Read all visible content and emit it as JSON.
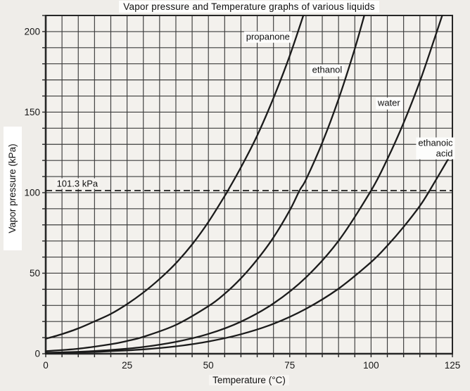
{
  "chart_data": {
    "type": "line",
    "title": "Vapor pressure and Temperature graphs of various liquids",
    "xlabel": "Temperature (°C)",
    "ylabel": "Vapor pressure (kPa)",
    "xlim": [
      0,
      125
    ],
    "ylim": [
      0,
      210
    ],
    "x_ticks": [
      0,
      25,
      50,
      75,
      100,
      125
    ],
    "y_ticks": [
      0,
      50,
      100,
      150,
      200
    ],
    "grid": {
      "on": true,
      "x_step_c": 5,
      "y_step_kpa": 10
    },
    "legend_position": "inline-labels",
    "reference_line": {
      "pressure_kpa": 101.3,
      "label": "101.3 kPa",
      "style": "dashed",
      "label_anchor": {
        "t": 9.7,
        "p": 105.7
      }
    },
    "series": [
      {
        "name": "propanone",
        "label": "propanone",
        "label_anchor": {
          "t": 68.3,
          "p": 196.5,
          "align": "center"
        },
        "points": [
          [
            0,
            9.3
          ],
          [
            5,
            12.2
          ],
          [
            10,
            15.7
          ],
          [
            15,
            20.1
          ],
          [
            20,
            24.7
          ],
          [
            25,
            30.8
          ],
          [
            30,
            38.0
          ],
          [
            35,
            46.4
          ],
          [
            40,
            56.2
          ],
          [
            45,
            67.9
          ],
          [
            50,
            81.8
          ],
          [
            55,
            97.9
          ],
          [
            56,
            101.3
          ],
          [
            60,
            115.7
          ],
          [
            65,
            135.5
          ],
          [
            70,
            158.8
          ],
          [
            75,
            185.0
          ],
          [
            80,
            215.0
          ]
        ]
      },
      {
        "name": "ethanol",
        "label": "ethanol",
        "label_anchor": {
          "t": 86.5,
          "p": 175.9,
          "align": "center"
        },
        "points": [
          [
            0,
            1.6
          ],
          [
            10,
            3.1
          ],
          [
            20,
            5.9
          ],
          [
            25,
            7.9
          ],
          [
            30,
            10.5
          ],
          [
            40,
            17.9
          ],
          [
            50,
            29.5
          ],
          [
            55,
            37.2
          ],
          [
            60,
            46.8
          ],
          [
            65,
            58.5
          ],
          [
            70,
            72.2
          ],
          [
            75,
            89.0
          ],
          [
            78,
            101.3
          ],
          [
            80,
            108.2
          ],
          [
            85,
            131.0
          ],
          [
            90,
            158.1
          ],
          [
            95,
            189.4
          ],
          [
            99,
            218.0
          ]
        ]
      },
      {
        "name": "water",
        "label": "water",
        "label_anchor": {
          "t": 105.5,
          "p": 155.4,
          "align": "center"
        },
        "points": [
          [
            0,
            0.6
          ],
          [
            10,
            1.2
          ],
          [
            20,
            2.3
          ],
          [
            30,
            4.2
          ],
          [
            40,
            7.4
          ],
          [
            50,
            12.3
          ],
          [
            60,
            19.9
          ],
          [
            70,
            31.2
          ],
          [
            80,
            47.4
          ],
          [
            90,
            70.1
          ],
          [
            100,
            101.3
          ],
          [
            105,
            120.8
          ],
          [
            110,
            143.3
          ],
          [
            115,
            169.1
          ],
          [
            120,
            198.7
          ],
          [
            123,
            217.0
          ]
        ]
      },
      {
        "name": "ethanoic-acid",
        "label": "ethanoic\nacid",
        "label_anchor": {
          "t": 119.8,
          "p": 127.5,
          "align": "right"
        },
        "points": [
          [
            0,
            0.4
          ],
          [
            10,
            0.8
          ],
          [
            20,
            1.6
          ],
          [
            30,
            2.7
          ],
          [
            40,
            4.6
          ],
          [
            50,
            7.6
          ],
          [
            60,
            12.1
          ],
          [
            70,
            18.6
          ],
          [
            80,
            27.9
          ],
          [
            90,
            40.4
          ],
          [
            100,
            56.9
          ],
          [
            105,
            67.1
          ],
          [
            110,
            78.7
          ],
          [
            115,
            91.8
          ],
          [
            118,
            101.3
          ],
          [
            125,
            125.3
          ]
        ]
      }
    ]
  },
  "colors": {
    "background": "#efede9",
    "plot_background": "#f3f1ed",
    "grid": "#3c3c3c",
    "border": "#262626",
    "curve": "#1b1b1b",
    "reference_line": "#1b1b1b",
    "text": "#141414",
    "label_background": "#fdfdfc"
  }
}
